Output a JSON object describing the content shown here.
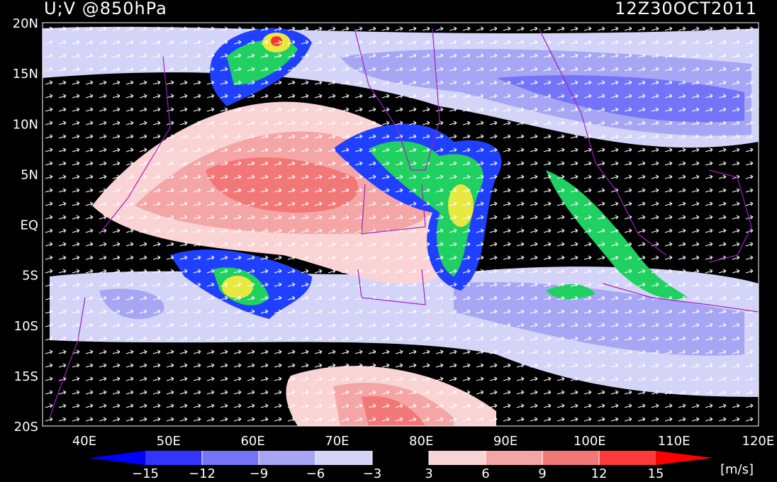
{
  "header": {
    "title": "U;V @850hPa",
    "date": "12Z30OCT2011"
  },
  "map": {
    "lat_labels": [
      "20N",
      "15N",
      "10N",
      "5N",
      "EQ",
      "5S",
      "10S",
      "15S",
      "20S"
    ],
    "lon_labels": [
      "40E",
      "50E",
      "60E",
      "70E",
      "80E",
      "90E",
      "100E",
      "110E",
      "120E"
    ]
  },
  "colorbar": {
    "levels": [
      "−15",
      "−12",
      "−9",
      "−6",
      "−3",
      "3",
      "6",
      "9",
      "12",
      "15"
    ],
    "colors": [
      "#0000ff",
      "#3434ff",
      "#7474f8",
      "#a6a6f4",
      "#d4d4f8",
      "#000000",
      "#fad4d4",
      "#f4a6a6",
      "#f27878",
      "#ff3a3a",
      "#ff0000"
    ],
    "unit": "[m/s]"
  }
}
